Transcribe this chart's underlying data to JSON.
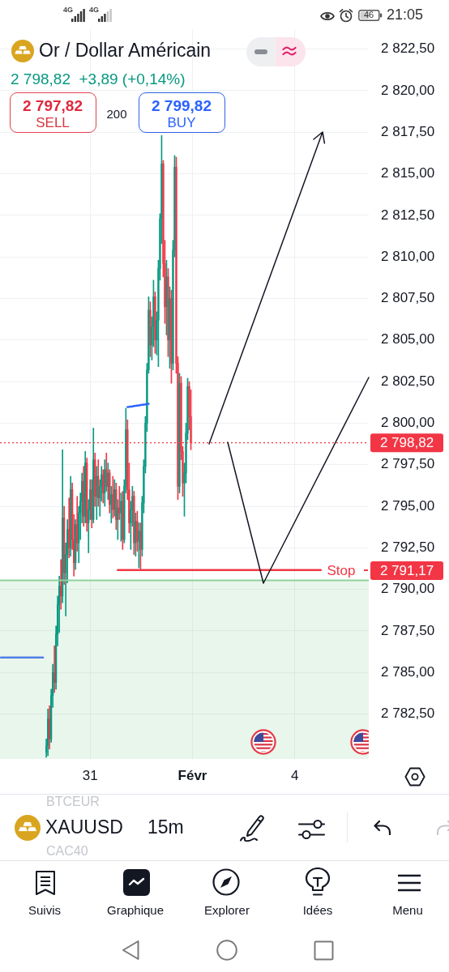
{
  "chart_data": {
    "type": "candlestick",
    "title": "Or / Dollar Américain",
    "subtitle": "2 798,82  +3,89 (+0,14%)",
    "categories": [
      null,
      null,
      null,
      null,
      null,
      null,
      null,
      null,
      null,
      null,
      null,
      null,
      null,
      null,
      null,
      null,
      null,
      null,
      null,
      null,
      null,
      null,
      null,
      null,
      null,
      null,
      null,
      null,
      null,
      null,
      null,
      null,
      null,
      null,
      null,
      null,
      null,
      null,
      null,
      null,
      null,
      null,
      null,
      null,
      null,
      null,
      null,
      null,
      null,
      null,
      null,
      null,
      null,
      null,
      null,
      "31",
      null,
      null,
      null,
      null,
      null,
      null,
      null,
      null,
      null,
      null,
      null,
      null,
      null,
      null,
      null,
      null,
      null,
      null,
      null,
      null,
      null,
      null,
      null,
      null,
      null,
      null,
      null,
      null,
      null,
      null,
      null,
      null,
      null,
      null,
      null,
      null,
      null,
      null,
      null,
      null,
      null,
      null,
      null,
      null,
      null,
      null,
      null,
      null,
      null,
      null,
      null,
      null,
      null,
      null,
      null,
      null,
      null,
      null,
      null,
      null,
      null,
      null,
      "Févr",
      null,
      null,
      null,
      null,
      null,
      null,
      null,
      null,
      null,
      null,
      null,
      null,
      null,
      null,
      null,
      null,
      null,
      null,
      null,
      null,
      null,
      null,
      null,
      null,
      null,
      null,
      null,
      null,
      null,
      null,
      null,
      null,
      null,
      null,
      null,
      null,
      null,
      null,
      null,
      null,
      null,
      null,
      null,
      null,
      null,
      null,
      null,
      null,
      null,
      null,
      null,
      null,
      null,
      null,
      null,
      null,
      null,
      null,
      null,
      null,
      null,
      null,
      "4",
      null,
      null,
      null,
      null,
      null,
      null,
      null,
      null,
      null,
      null,
      null,
      null,
      null,
      null,
      null,
      null,
      null,
      null,
      null,
      null,
      null,
      null,
      null,
      null,
      null,
      null,
      null,
      null,
      null,
      null,
      null,
      null,
      null,
      null,
      null,
      null,
      null,
      null,
      null,
      null,
      null,
      null,
      null,
      null,
      null
    ],
    "ohlc": [
      null,
      null,
      null,
      null,
      null,
      null,
      null,
      null,
      null,
      null,
      null,
      null,
      null,
      null,
      null,
      null,
      null,
      null,
      null,
      null,
      null,
      null,
      null,
      null,
      null,
      null,
      null,
      null,
      [
        2780.2,
        2781.0,
        2779.9,
        2780.6
      ],
      [
        2780.6,
        2782.8,
        2780.0,
        2782.2
      ],
      [
        2782.2,
        2783.0,
        2780.4,
        2781.0
      ],
      [
        2781.0,
        2784.0,
        2780.8,
        2783.6
      ],
      [
        2783.6,
        2785.5,
        2782.9,
        2785.0
      ],
      [
        2785.0,
        2786.6,
        2783.8,
        2784.4
      ],
      [
        2784.4,
        2787.8,
        2784.0,
        2787.3
      ],
      [
        2787.3,
        2789.6,
        2786.6,
        2789.1
      ],
      [
        2789.1,
        2790.8,
        2787.4,
        2790.2
      ],
      [
        2790.2,
        2791.8,
        2788.8,
        2789.6
      ],
      [
        2789.6,
        2798.4,
        2789.2,
        2794.3
      ],
      [
        2794.3,
        2795.0,
        2790.3,
        2791.0
      ],
      [
        2791.0,
        2792.8,
        2788.4,
        2792.1
      ],
      [
        2792.1,
        2794.2,
        2790.4,
        2793.6
      ],
      [
        2793.6,
        2795.5,
        2791.9,
        2792.5
      ],
      [
        2792.5,
        2796.8,
        2792.0,
        2796.0
      ],
      [
        2796.0,
        2796.4,
        2792.4,
        2793.0
      ],
      [
        2793.0,
        2794.5,
        2790.8,
        2791.6
      ],
      [
        2791.6,
        2794.2,
        2791.2,
        2793.9
      ],
      [
        2793.9,
        2795.6,
        2792.3,
        2792.8
      ],
      [
        2792.8,
        2795.0,
        2791.6,
        2794.6
      ],
      [
        2794.6,
        2795.8,
        2793.0,
        2795.3
      ],
      [
        2795.3,
        2797.0,
        2794.0,
        2796.5
      ],
      [
        2796.5,
        2797.4,
        2793.8,
        2794.4
      ],
      [
        2794.4,
        2798.3,
        2794.0,
        2797.6
      ],
      [
        2797.6,
        2797.9,
        2793.5,
        2794.0
      ],
      [
        2794.0,
        2795.4,
        2792.2,
        2794.8
      ],
      [
        2794.8,
        2796.6,
        2794.2,
        2796.0
      ],
      [
        2796.0,
        2796.6,
        2793.7,
        2794.2
      ],
      [
        2794.2,
        2799.7,
        2794.0,
        2797.8
      ],
      [
        2797.8,
        2798.2,
        2795.0,
        2795.6
      ],
      [
        2795.6,
        2797.4,
        2794.2,
        2796.8
      ],
      [
        2796.8,
        2797.8,
        2795.0,
        2795.5
      ],
      [
        2795.5,
        2796.6,
        2794.4,
        2796.2
      ],
      [
        2796.2,
        2797.4,
        2795.3,
        2796.9
      ],
      [
        2796.9,
        2797.2,
        2795.2,
        2795.8
      ],
      [
        2795.8,
        2797.8,
        2795.0,
        2797.2
      ],
      [
        2797.2,
        2798.2,
        2795.9,
        2796.2
      ],
      [
        2796.2,
        2797.6,
        2795.4,
        2797.0
      ],
      [
        2797.0,
        2797.2,
        2794.6,
        2795.1
      ],
      [
        2795.1,
        2796.2,
        2794.0,
        2795.7
      ],
      [
        2795.7,
        2796.8,
        2794.3,
        2794.8
      ],
      [
        2794.8,
        2796.6,
        2794.4,
        2796.0
      ],
      [
        2796.0,
        2796.4,
        2793.6,
        2794.2
      ],
      [
        2794.2,
        2795.4,
        2793.0,
        2794.9
      ],
      [
        2794.9,
        2796.2,
        2794.2,
        2794.6
      ],
      [
        2794.6,
        2795.8,
        2792.9,
        2795.3
      ],
      [
        2795.3,
        2795.9,
        2792.4,
        2793.0
      ],
      [
        2793.0,
        2796.6,
        2792.8,
        2796.2
      ],
      [
        2796.2,
        2800.9,
        2795.8,
        2799.6
      ],
      [
        2799.6,
        2800.2,
        2795.4,
        2796.0
      ],
      [
        2796.0,
        2797.6,
        2793.4,
        2794.0
      ],
      [
        2794.0,
        2795.3,
        2792.4,
        2794.8
      ],
      [
        2794.8,
        2796.2,
        2793.8,
        2795.6
      ],
      [
        2795.6,
        2795.9,
        2792.1,
        2792.8
      ],
      [
        2792.8,
        2794.6,
        2792.0,
        2794.1
      ],
      [
        2794.1,
        2794.7,
        2792.3,
        2792.9
      ],
      [
        2792.9,
        2794.0,
        2791.3,
        2793.5
      ],
      [
        2793.5,
        2794.0,
        2791.2,
        2792.4
      ],
      [
        2792.4,
        2795.6,
        2792.0,
        2795.2
      ],
      [
        2795.2,
        2797.8,
        2794.6,
        2797.4
      ],
      [
        2797.4,
        2800.4,
        2797.0,
        2800.0
      ],
      [
        2800.0,
        2803.6,
        2799.5,
        2803.2
      ],
      [
        2803.2,
        2807.6,
        2803.0,
        2806.8
      ],
      [
        2806.8,
        2807.3,
        2804.0,
        2804.7
      ],
      [
        2804.7,
        2806.4,
        2803.8,
        2805.8
      ],
      [
        2805.8,
        2808.6,
        2804.6,
        2807.6
      ],
      [
        2807.6,
        2807.9,
        2804.2,
        2805.0
      ],
      [
        2805.0,
        2806.7,
        2804.1,
        2806.2
      ],
      [
        2806.2,
        2809.8,
        2803.4,
        2809.3
      ],
      [
        2809.3,
        2812.6,
        2808.6,
        2812.3
      ],
      [
        2812.3,
        2817.3,
        2810.8,
        2815.6
      ],
      [
        2815.6,
        2815.8,
        2808.8,
        2809.6
      ],
      [
        2809.6,
        2811.0,
        2806.0,
        2807.0
      ],
      [
        2807.0,
        2809.8,
        2805.3,
        2808.8
      ],
      [
        2808.8,
        2809.3,
        2804.0,
        2805.0
      ],
      [
        2805.0,
        2808.2,
        2803.3,
        2807.5
      ],
      [
        2807.5,
        2808.0,
        2802.4,
        2803.6
      ],
      [
        2803.6,
        2811.0,
        2803.2,
        2810.4
      ],
      [
        2810.4,
        2816.1,
        2810.0,
        2815.4
      ],
      [
        2815.4,
        2816.0,
        2803.0,
        2803.6
      ],
      [
        2803.6,
        2804.0,
        2795.4,
        2796.2
      ],
      [
        2796.2,
        2803.0,
        2795.8,
        2802.4
      ],
      [
        2802.4,
        2802.8,
        2797.8,
        2798.3
      ],
      [
        2798.3,
        2798.6,
        2795.6,
        2796.4
      ],
      [
        2796.4,
        2797.6,
        2794.4,
        2797.0
      ],
      [
        2797.0,
        2800.0,
        2796.4,
        2799.4
      ],
      [
        2799.4,
        2802.7,
        2799.0,
        2802.2
      ],
      [
        2802.2,
        2802.5,
        2799.6,
        2800.4
      ],
      [
        2800.4,
        2802.0,
        2798.4,
        2798.82
      ],
      null,
      null,
      null,
      null,
      null,
      null,
      null,
      null,
      null,
      null,
      null,
      null,
      null,
      null,
      null,
      null,
      null,
      null,
      null,
      null,
      null,
      null,
      null,
      null,
      null,
      null,
      null,
      null,
      null,
      null,
      null,
      null,
      null,
      null,
      null,
      null,
      null,
      null,
      null,
      null,
      null,
      null,
      null,
      null,
      null,
      null,
      null,
      null,
      null,
      null,
      null,
      null,
      null,
      null,
      null,
      null,
      null,
      null,
      null,
      null,
      null,
      null,
      null,
      null,
      null,
      null,
      null,
      null,
      null,
      null,
      null,
      null,
      null,
      null,
      null,
      null,
      null,
      null,
      null,
      null,
      null,
      null,
      null,
      null,
      null,
      null,
      null,
      null,
      null,
      null,
      null,
      null,
      null,
      null,
      null,
      null,
      null,
      null,
      null,
      null,
      null,
      null,
      null,
      null,
      null,
      null,
      null,
      null,
      null
    ],
    "colors": [
      null,
      null,
      null,
      null,
      null,
      null,
      null,
      null,
      null,
      null,
      null,
      null,
      null,
      null,
      null,
      null,
      null,
      null,
      null,
      null,
      null,
      null,
      null,
      null,
      null,
      null,
      null,
      null,
      "#089981",
      "#089981",
      "#f23645",
      "#089981",
      "#089981",
      "#f23645",
      "#089981",
      "#089981",
      "#089981",
      "#f23645",
      "#089981",
      "#f23645",
      "#089981",
      "#089981",
      "#f23645",
      "#089981",
      "#f23645",
      "#f23645",
      "#089981",
      "#f23645",
      "#089981",
      "#089981",
      "#089981",
      "#f23645",
      "#089981",
      "#f23645",
      "#089981",
      "#089981",
      "#f23645",
      "#089981",
      "#f23645",
      "#089981",
      "#f23645",
      "#089981",
      "#089981",
      "#f23645",
      "#089981",
      "#f23645",
      "#089981",
      "#f23645",
      "#089981",
      "#f23645",
      "#089981",
      "#f23645",
      "#089981",
      "#f23645",
      "#089981",
      "#f23645",
      "#089981",
      "#089981",
      "#f23645",
      "#f23645",
      "#089981",
      "#089981",
      "#f23645",
      "#089981",
      "#f23645",
      "#089981",
      "#f23645",
      "#089981",
      "#089981",
      "#089981",
      "#089981",
      "#089981",
      "#f23645",
      "#089981",
      "#089981",
      "#f23645",
      "#089981",
      "#089981",
      "#089981",
      "#089981",
      "#f23645",
      "#f23645",
      "#089981",
      "#f23645",
      "#089981",
      "#f23645",
      "#089981",
      "#089981",
      "#f23645",
      "#f23645",
      "#089981",
      "#f23645",
      "#f23645",
      "#089981",
      "#089981",
      "#089981",
      "#f23645",
      "#f23645",
      null,
      null,
      null,
      null,
      null,
      null,
      null,
      null,
      null,
      null,
      null,
      null,
      null,
      null,
      null,
      null,
      null,
      null,
      null,
      null,
      null,
      null,
      null,
      null,
      null,
      null,
      null,
      null,
      null,
      null,
      null,
      null,
      null,
      null,
      null,
      null,
      null,
      null,
      null,
      null,
      null,
      null,
      null,
      null,
      null,
      null,
      null,
      null,
      null,
      null,
      null,
      null,
      null,
      null,
      null,
      null,
      null,
      null,
      null,
      null,
      null,
      null,
      null,
      null,
      null,
      null,
      null,
      null,
      null,
      null,
      null,
      null,
      null,
      null,
      null,
      null,
      null,
      null,
      null,
      null,
      null,
      null,
      null,
      null,
      null,
      null,
      null,
      null,
      null,
      null,
      null,
      null,
      null,
      null,
      null,
      null,
      null,
      null,
      null,
      null,
      null,
      null,
      null,
      null,
      null,
      null,
      null,
      null,
      null
    ],
    "series": [
      {
        "type": "line",
        "color": "#f23645",
        "values": [
          null,
          null,
          null,
          null,
          null,
          null,
          null,
          null,
          null,
          null,
          null,
          null,
          null,
          null,
          null,
          null,
          null,
          null,
          null,
          null,
          null,
          null,
          null,
          null,
          null,
          null,
          null,
          null,
          null,
          null,
          null,
          null,
          null,
          null,
          null,
          null,
          null,
          null,
          null,
          null,
          null,
          null,
          null,
          null,
          null,
          null,
          null,
          null,
          null,
          null,
          null,
          null,
          null,
          null,
          null,
          null,
          null,
          null,
          null,
          null,
          null,
          null,
          null,
          null,
          null,
          null,
          null,
          null,
          null,
          null,
          null,
          null,
          2791.17,
          2791.17,
          2791.17,
          2791.17,
          2791.17,
          2791.17,
          2791.17,
          2791.17,
          2791.17,
          2791.17,
          2791.17,
          2791.17,
          2791.17,
          2791.17,
          2791.17,
          2791.17,
          2791.17,
          2791.17,
          2791.17,
          2791.17,
          2791.17,
          2791.17,
          2791.17,
          2791.17,
          2791.17,
          2791.17,
          2791.17,
          2791.17,
          2791.17,
          2791.17,
          2791.17,
          2791.17,
          2791.17,
          2791.17,
          2791.17,
          2791.17,
          2791.17,
          2791.17,
          2791.17,
          2791.17,
          2791.17,
          2791.17,
          2791.17,
          2791.17,
          2791.17,
          2791.17,
          2791.17,
          2791.17,
          2791.17,
          2791.17,
          2791.17,
          2791.17,
          2791.17,
          2791.17,
          2791.17,
          2791.17,
          2791.17,
          2791.17,
          2791.17,
          2791.17,
          2791.17,
          2791.17,
          2791.17,
          2791.17,
          2791.17,
          2791.17,
          2791.17,
          2791.17,
          2791.17,
          2791.17,
          2791.17,
          2791.17,
          2791.17,
          2791.17,
          2791.17,
          2791.17,
          2791.17,
          2791.17,
          2791.17,
          2791.17,
          2791.17,
          2791.17,
          2791.17,
          2791.17,
          2791.17,
          2791.17,
          2791.17,
          2791.17,
          2791.17,
          2791.17,
          2791.17,
          2791.17,
          2791.17,
          2791.17,
          2791.17,
          2791.17,
          2791.17,
          2791.17,
          2791.17,
          2791.17,
          2791.17,
          2791.17,
          2791.17,
          2791.17,
          2791.17,
          2791.17,
          2791.17,
          2791.17,
          2791.17,
          2791.17,
          2791.17,
          2791.17,
          2791.17,
          2791.17,
          2791.17,
          2791.17,
          2791.17,
          2791.17,
          2791.17,
          2791.17,
          2791.17,
          2791.17,
          2791.17,
          2791.17,
          2791.17,
          2791.17,
          null,
          null,
          null,
          null,
          null,
          null,
          null,
          null,
          null,
          null,
          null,
          null,
          null,
          null,
          null,
          null,
          null,
          null,
          null,
          null,
          null,
          null,
          null,
          null,
          null,
          null,
          null,
          null,
          null
        ]
      },
      {
        "type": "line",
        "color": "#2962ff",
        "values": [
          null,
          null,
          null,
          null,
          null,
          null,
          null,
          null,
          null,
          null,
          null,
          null,
          null,
          null,
          null,
          null,
          null,
          null,
          null,
          null,
          null,
          null,
          null,
          null,
          null,
          null,
          null,
          null,
          null,
          null,
          null,
          null,
          null,
          null,
          null,
          null,
          null,
          null,
          null,
          null,
          null,
          null,
          null,
          null,
          null,
          null,
          null,
          null,
          null,
          null,
          null,
          null,
          null,
          null,
          null,
          null,
          null,
          null,
          null,
          null,
          null,
          null,
          null,
          null,
          null,
          null,
          null,
          null,
          null,
          null,
          null,
          null,
          null,
          null,
          null,
          null,
          null,
          null,
          2800.97,
          2800.98,
          2801.0,
          2801.01,
          2801.03,
          2801.04,
          2801.06,
          2801.07,
          2801.09,
          2801.1,
          2801.12,
          2801.13,
          2801.15,
          2801.16,
          null,
          null,
          null,
          null,
          null,
          null,
          null,
          null,
          null,
          null,
          null,
          null,
          null,
          null,
          null,
          null,
          null,
          null,
          null,
          null,
          null,
          null,
          null,
          null,
          null,
          null,
          null,
          null,
          null,
          null,
          null,
          null,
          null,
          null,
          null,
          null,
          null,
          null,
          null,
          null,
          null,
          null,
          null,
          null,
          null,
          null,
          null,
          null,
          null,
          null,
          null,
          null,
          null,
          null,
          null,
          null,
          null,
          null,
          null,
          null,
          null,
          null,
          null,
          null,
          null,
          null,
          null,
          null,
          null,
          null,
          null,
          null,
          null,
          null,
          null,
          null,
          null,
          null,
          null,
          null,
          null,
          null,
          null,
          null,
          null,
          null,
          null,
          null,
          null,
          null,
          null,
          null,
          null,
          null,
          null,
          null,
          null,
          null,
          null,
          null,
          null,
          null,
          null,
          null,
          null,
          null,
          null,
          null,
          null,
          null,
          null,
          null,
          null,
          null,
          null,
          null,
          null,
          null,
          null,
          null,
          null,
          null,
          null,
          null,
          null,
          null,
          null,
          null,
          null,
          null,
          null,
          null,
          null,
          null,
          null
        ]
      },
      {
        "type": "line",
        "color": "#4f7fe6",
        "values": [
          2785.9,
          2785.9,
          2785.9,
          2785.9,
          2785.9,
          2785.9,
          2785.9,
          2785.9,
          2785.9,
          2785.9,
          2785.9,
          2785.9,
          2785.9,
          2785.9,
          2785.9,
          2785.9,
          2785.9,
          2785.9,
          2785.9,
          2785.9,
          2785.9,
          2785.9,
          2785.9,
          2785.9,
          2785.9,
          2785.9,
          2785.9,
          null,
          null,
          null,
          null,
          null,
          null,
          null,
          null,
          null,
          null,
          null,
          null,
          null,
          null,
          null,
          null,
          null,
          null,
          null,
          null,
          null,
          null,
          null,
          null,
          null,
          null,
          null,
          null,
          null,
          null,
          null,
          null,
          null,
          null,
          null,
          null,
          null,
          null,
          null,
          null,
          null,
          null,
          null,
          null,
          null,
          null,
          null,
          null,
          null,
          null,
          null,
          null,
          null,
          null,
          null,
          null,
          null,
          null,
          null,
          null,
          null,
          null,
          null,
          null,
          null,
          null,
          null,
          null,
          null,
          null,
          null,
          null,
          null,
          null,
          null,
          null,
          null,
          null,
          null,
          null,
          null,
          null,
          null,
          null,
          null,
          null,
          null,
          null,
          null,
          null,
          null,
          null,
          null,
          null,
          null,
          null,
          null,
          null,
          null,
          null,
          null,
          null,
          null,
          null,
          null,
          null,
          null,
          null,
          null,
          null,
          null,
          null,
          null,
          null,
          null,
          null,
          null,
          null,
          null,
          null,
          null,
          null,
          null,
          null,
          null,
          null,
          null,
          null,
          null,
          null,
          null,
          null,
          null,
          null,
          null,
          null,
          null,
          null,
          null,
          null,
          null,
          null,
          null,
          null,
          null,
          null,
          null,
          null,
          null,
          null,
          null,
          null,
          null,
          null,
          null,
          null,
          null,
          null,
          null,
          null,
          null,
          null,
          null,
          null,
          null,
          null,
          null,
          null,
          null,
          null,
          null,
          null,
          null,
          null,
          null,
          null,
          null,
          null,
          null,
          null,
          null,
          null,
          null,
          null,
          null,
          null,
          null,
          null,
          null,
          null,
          null,
          null,
          null,
          null,
          null,
          null,
          null,
          null,
          null,
          null
        ]
      }
    ],
    "ylim": [
      2779.8,
      2823.7
    ],
    "yticks": [
      {
        "value": 2782.5,
        "label": "2 782,50"
      },
      {
        "value": 2785,
        "label": "2 785,00"
      },
      {
        "value": 2787.5,
        "label": "2 787,50"
      },
      {
        "value": 2790,
        "label": "2 790,00"
      },
      {
        "value": 2792.5,
        "label": "2 792,50"
      },
      {
        "value": 2795,
        "label": "2 795,00"
      },
      {
        "value": 2797.5,
        "label": "2 797,50"
      },
      {
        "value": 2800,
        "label": "2 800,00"
      },
      {
        "value": 2802.5,
        "label": "2 802,50"
      },
      {
        "value": 2805,
        "label": "2 805,00"
      },
      {
        "value": 2807.5,
        "label": "2 807,50"
      },
      {
        "value": 2810,
        "label": "2 810,00"
      },
      {
        "value": 2812.5,
        "label": "2 812,50"
      },
      {
        "value": 2815,
        "label": "2 815,00"
      },
      {
        "value": 2817.5,
        "label": "2 817,50"
      },
      {
        "value": 2820,
        "label": "2 820,00"
      },
      {
        "value": 2822.5,
        "label": "2 822,50"
      }
    ],
    "grid": true,
    "marker": "none",
    "ref_lines": [
      {
        "axis": "y",
        "value": 2790.54,
        "color": "#8fd19e"
      },
      {
        "axis": "y",
        "value": 2798.82,
        "label": "2 798,82",
        "color": "#f23645",
        "line_style": "dotted"
      }
    ],
    "bands": [
      {
        "axis": "y",
        "from": 2779.8,
        "to": 2790.54,
        "color": "#8fd19e"
      }
    ],
    "annotations": [
      "2 797,82",
      "SELL",
      "200",
      "2 799,82",
      "BUY",
      "BTCEUR",
      "XAUUSD",
      "15m",
      "CAC40",
      "Suivis",
      "Graphique",
      "Explorer",
      "Idées",
      "Menu",
      "4G",
      "4G",
      "46",
      "21:05",
      "Stop",
      "2 791,17"
    ]
  }
}
